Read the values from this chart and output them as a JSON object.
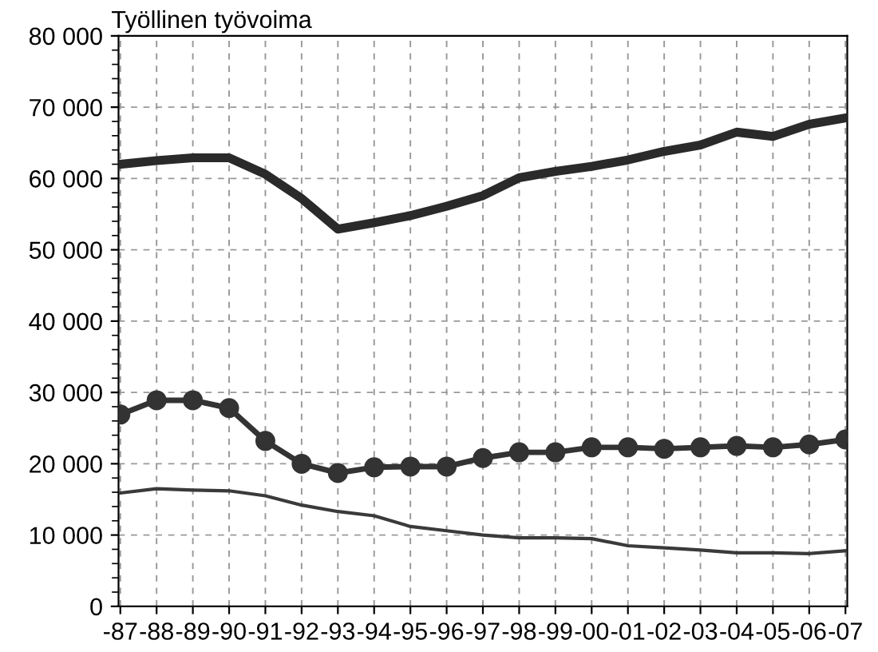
{
  "chart_data": {
    "type": "line",
    "ylabel": "Työllinen työvoima",
    "categories": [
      "-87",
      "-88",
      "-89",
      "-90",
      "-91",
      "-92",
      "-93",
      "-94",
      "-95",
      "-96",
      "-97",
      "-98",
      "-99",
      "-00",
      "-01",
      "-02",
      "-03",
      "-04",
      "-05",
      "-06",
      "-07"
    ],
    "series": [
      {
        "color": "#2a2a2a",
        "marker": "none",
        "values": [
          62000,
          62500,
          62900,
          62900,
          60600,
          57200,
          52900,
          53800,
          54800,
          56100,
          57600,
          60100,
          61000,
          61700,
          62600,
          63800,
          64700,
          66500,
          65900,
          67600,
          68500
        ]
      },
      {
        "color": "#333333",
        "marker": "circle",
        "values": [
          26900,
          28900,
          28900,
          27800,
          23200,
          20000,
          18700,
          19500,
          19600,
          19600,
          20800,
          21600,
          21600,
          22300,
          22300,
          22100,
          22300,
          22500,
          22300,
          22700,
          23400
        ]
      },
      {
        "color": "#3a3a3a",
        "marker": "none",
        "values": [
          15900,
          16500,
          16300,
          16200,
          15500,
          14200,
          13300,
          12700,
          11200,
          10600,
          10000,
          9600,
          9600,
          9500,
          8500,
          8200,
          7900,
          7500,
          7500,
          7400,
          7800
        ]
      }
    ],
    "ylim": [
      0,
      80000
    ],
    "yticks": [
      {
        "value": 0,
        "label": "0"
      },
      {
        "value": 10000,
        "label": "10 000"
      },
      {
        "value": 20000,
        "label": "20 000"
      },
      {
        "value": 30000,
        "label": "30 000"
      },
      {
        "value": 40000,
        "label": "40 000"
      },
      {
        "value": 50000,
        "label": "50 000"
      },
      {
        "value": 60000,
        "label": "60 000"
      },
      {
        "value": 70000,
        "label": "70 000"
      },
      {
        "value": 80000,
        "label": "80 000"
      }
    ],
    "grid": true,
    "line_style": "solid"
  }
}
